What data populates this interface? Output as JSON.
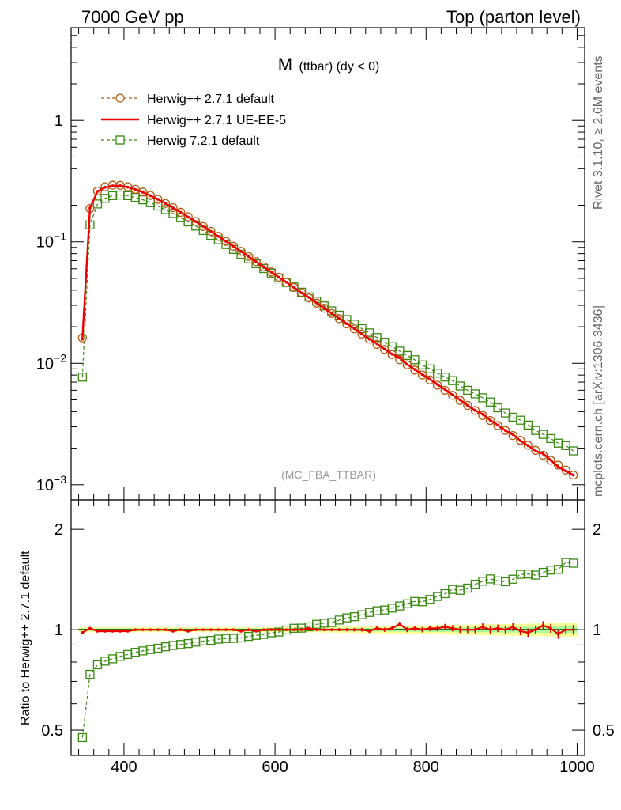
{
  "header": {
    "left": "7000 GeV pp",
    "right": "Top (parton level)"
  },
  "side": {
    "rivet": "Rivet 3.1.10, ≥ 2.6M events",
    "site": "mcplots.cern.ch [arXiv:1306.3436]"
  },
  "colors": {
    "h271_default": "#b35a10",
    "h271_ueee5": "#ee0000",
    "h721_default": "#3a8a10",
    "band_yellow": "#ffff99",
    "band_green": "#aaff99"
  },
  "chart_data": [
    {
      "type": "line",
      "title_main": "M",
      "title_sub": "(ttbar) (dy < 0)",
      "watermark": "(MC_FBA_TTBAR)",
      "yscale": "log",
      "xlim": [
        330,
        1010
      ],
      "ylim": [
        0.00075,
        5.8
      ],
      "ytick_labels": [
        "10^-3",
        "10^-2",
        "10^-1",
        "1"
      ],
      "legend": "top-left",
      "x": [
        345,
        355,
        365,
        375,
        385,
        395,
        405,
        415,
        425,
        435,
        445,
        455,
        465,
        475,
        485,
        495,
        505,
        515,
        525,
        535,
        545,
        555,
        565,
        575,
        585,
        595,
        605,
        615,
        625,
        635,
        645,
        655,
        665,
        675,
        685,
        695,
        705,
        715,
        725,
        735,
        745,
        755,
        765,
        775,
        785,
        795,
        805,
        815,
        825,
        835,
        845,
        855,
        865,
        875,
        885,
        895,
        905,
        915,
        925,
        935,
        945,
        955,
        965,
        975,
        985,
        995
      ],
      "series": [
        {
          "name": "Herwig++ 2.7.1 default",
          "style": "dashed-circle",
          "values": [
            0.0162,
            0.188,
            0.262,
            0.284,
            0.293,
            0.292,
            0.284,
            0.271,
            0.257,
            0.241,
            0.224,
            0.207,
            0.191,
            0.175,
            0.161,
            0.147,
            0.134,
            0.122,
            0.111,
            0.101,
            0.092,
            0.0835,
            0.0758,
            0.0687,
            0.0623,
            0.0565,
            0.0512,
            0.0464,
            0.0421,
            0.0381,
            0.0345,
            0.0313,
            0.0284,
            0.0257,
            0.0233,
            0.0211,
            0.0192,
            0.0174,
            0.0158,
            0.0143,
            0.013,
            0.0118,
            0.0107,
            0.0097,
            0.0088,
            0.008,
            0.0073,
            0.0066,
            0.006,
            0.00545,
            0.00495,
            0.0045,
            0.00409,
            0.00372,
            0.00338,
            0.00307,
            0.0028,
            0.00254,
            0.00232,
            0.00211,
            0.00192,
            0.00175,
            0.00159,
            0.00145,
            0.00132,
            0.0012
          ]
        },
        {
          "name": "Herwig++ 2.7.1 UE-EE-5",
          "style": "solid",
          "values": [
            0.0158,
            0.19,
            0.26,
            0.281,
            0.289,
            0.29,
            0.282,
            0.27,
            0.256,
            0.24,
            0.224,
            0.207,
            0.19,
            0.175,
            0.16,
            0.147,
            0.134,
            0.122,
            0.111,
            0.101,
            0.092,
            0.0832,
            0.0758,
            0.0685,
            0.0622,
            0.0565,
            0.0511,
            0.0465,
            0.0421,
            0.038,
            0.0348,
            0.0314,
            0.0285,
            0.0258,
            0.0234,
            0.0212,
            0.0193,
            0.0174,
            0.0158,
            0.0145,
            0.0131,
            0.0119,
            0.0111,
            0.0098,
            0.0089,
            0.0081,
            0.0074,
            0.0067,
            0.0061,
            0.0055,
            0.005,
            0.0045,
            0.0041,
            0.0038,
            0.0034,
            0.0031,
            0.0028,
            0.0026,
            0.0023,
            0.0021,
            0.0019,
            0.0018,
            0.0016,
            0.0014,
            0.0013,
            0.0012
          ]
        },
        {
          "name": "Herwig 7.2.1 default",
          "style": "dashed-square",
          "values": [
            0.0077,
            0.138,
            0.205,
            0.228,
            0.24,
            0.243,
            0.24,
            0.232,
            0.222,
            0.21,
            0.197,
            0.184,
            0.171,
            0.158,
            0.146,
            0.135,
            0.124,
            0.113,
            0.104,
            0.095,
            0.0866,
            0.0789,
            0.0724,
            0.0661,
            0.0603,
            0.0553,
            0.0504,
            0.0463,
            0.0425,
            0.0385,
            0.0352,
            0.0325,
            0.0297,
            0.027,
            0.0249,
            0.0229,
            0.021,
            0.0193,
            0.0178,
            0.0163,
            0.0149,
            0.0137,
            0.0126,
            0.0116,
            0.0107,
            0.0097,
            0.009,
            0.0083,
            0.0077,
            0.0072,
            0.0065,
            0.006,
            0.0056,
            0.0052,
            0.0048,
            0.0043,
            0.0039,
            0.0036,
            0.0034,
            0.0031,
            0.0028,
            0.0026,
            0.0024,
            0.0022,
            0.0021,
            0.0019
          ]
        }
      ]
    },
    {
      "type": "line",
      "ylabel": "Ratio to Herwig++ 2.7.1 default",
      "xlim": [
        330,
        1010
      ],
      "ylim": [
        0.42,
        2.45
      ],
      "yscale": "log",
      "xtick_labels": [
        400,
        600,
        800,
        1000
      ],
      "ytick_labels": [
        0.5,
        1,
        2
      ],
      "reference_band": "yellow/green uncertainty band around 1",
      "x": [
        345,
        355,
        365,
        375,
        385,
        395,
        405,
        415,
        425,
        435,
        445,
        455,
        465,
        475,
        485,
        495,
        505,
        515,
        525,
        535,
        545,
        555,
        565,
        575,
        585,
        595,
        605,
        615,
        625,
        635,
        645,
        655,
        665,
        675,
        685,
        695,
        705,
        715,
        725,
        735,
        745,
        755,
        765,
        775,
        785,
        795,
        805,
        815,
        825,
        835,
        845,
        855,
        865,
        875,
        885,
        895,
        905,
        915,
        925,
        935,
        945,
        955,
        965,
        975,
        985,
        995
      ],
      "series": [
        {
          "name": "Herwig++ 2.7.1 UE-EE-5",
          "values": [
            0.98,
            1.01,
            0.99,
            0.99,
            0.99,
            0.99,
            0.99,
            1.0,
            1.0,
            1.0,
            1.0,
            1.0,
            0.99,
            1.0,
            0.99,
            1.0,
            1.0,
            1.0,
            1.0,
            1.0,
            1.0,
            0.99,
            1.0,
            0.99,
            1.0,
            1.0,
            1.0,
            1.0,
            1.0,
            1.0,
            1.01,
            1.0,
            1.0,
            1.0,
            1.0,
            1.0,
            1.0,
            1.0,
            0.99,
            1.01,
            1.0,
            1.01,
            1.04,
            1.0,
            1.01,
            1.0,
            1.01,
            1.01,
            1.02,
            1.01,
            1.0,
            1.0,
            1.0,
            1.02,
            1.0,
            1.01,
            1.0,
            1.02,
            0.99,
            0.98,
            1.0,
            1.03,
            1.01,
            0.97,
            1.0,
            1.0
          ]
        },
        {
          "name": "Herwig 7.2.1 default",
          "values": [
            0.475,
            0.735,
            0.785,
            0.805,
            0.818,
            0.832,
            0.843,
            0.856,
            0.864,
            0.872,
            0.88,
            0.889,
            0.897,
            0.903,
            0.909,
            0.918,
            0.925,
            0.929,
            0.937,
            0.941,
            0.942,
            0.945,
            0.955,
            0.962,
            0.968,
            0.979,
            0.984,
            0.998,
            1.01,
            1.011,
            1.02,
            1.038,
            1.046,
            1.051,
            1.069,
            1.085,
            1.094,
            1.109,
            1.127,
            1.14,
            1.146,
            1.161,
            1.178,
            1.196,
            1.216,
            1.213,
            1.233,
            1.258,
            1.283,
            1.321,
            1.313,
            1.333,
            1.369,
            1.398,
            1.42,
            1.401,
            1.393,
            1.417,
            1.466,
            1.469,
            1.458,
            1.486,
            1.51,
            1.517,
            1.591,
            1.583
          ]
        }
      ]
    }
  ]
}
